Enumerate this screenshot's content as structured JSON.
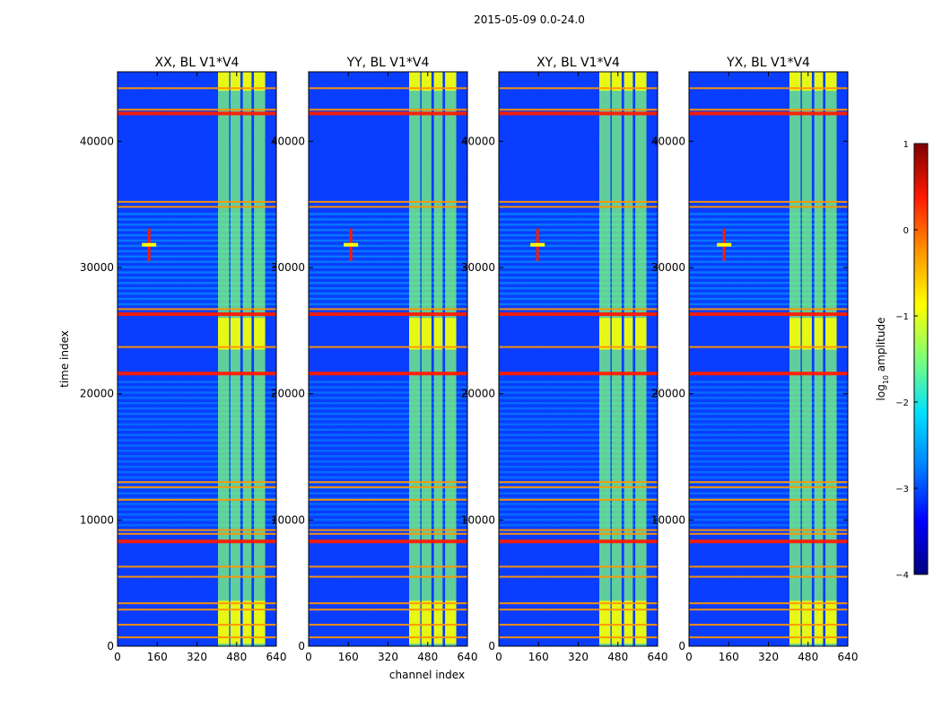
{
  "figure_title": "2015-05-09 0.0-24.0",
  "colormap_colors": {
    "c0": "#00007f",
    "c1": "#0000ff",
    "c2": "#0080ff",
    "c3": "#00e0ff",
    "c4": "#7dff7a",
    "c5": "#ffff00",
    "c6": "#ff9400",
    "c7": "#ff1a00",
    "c8": "#7f0000"
  },
  "chart_data": {
    "type": "heatmap",
    "title": "2015-05-09 0.0-24.0",
    "xlabel": "channel index",
    "ylabel": "time index",
    "xlim": [
      0,
      640
    ],
    "ylim": [
      0,
      45500
    ],
    "xticks": [
      0,
      160,
      320,
      480,
      640
    ],
    "yticks": [
      0,
      10000,
      20000,
      30000,
      40000
    ],
    "panels": [
      {
        "title": "XX, BL V1*V4",
        "polarization": "XX",
        "baseline": "V1*V4"
      },
      {
        "title": "YY, BL V1*V4",
        "polarization": "YY",
        "baseline": "V1*V4"
      },
      {
        "title": "XY, BL V1*V4",
        "polarization": "XY",
        "baseline": "V1*V4"
      },
      {
        "title": "YX, BL V1*V4",
        "polarization": "YX",
        "baseline": "V1*V4"
      }
    ],
    "rfi_channel_bands": [
      [
        405,
        450
      ],
      [
        455,
        495
      ],
      [
        505,
        540
      ],
      [
        550,
        595
      ]
    ],
    "bright_time_rows": [
      700,
      1700,
      2900,
      3400,
      5500,
      6300,
      8300,
      8900,
      9200,
      11600,
      12600,
      13000,
      21600,
      23700,
      26300,
      26700,
      34800,
      35200,
      42200,
      42500,
      44200
    ],
    "bright_spot": {
      "channel": 185,
      "time_index": 31800
    },
    "colorbar": {
      "label": "log10 amplitude",
      "label_text": "log",
      "label_sub": "10",
      "label_rest": " amplitude",
      "range": [
        -4,
        1
      ],
      "ticks": [
        -4,
        -3,
        -2,
        -1,
        0,
        1
      ],
      "tick_labels": [
        "−4",
        "−3",
        "−2",
        "−1",
        "0",
        "1"
      ]
    }
  }
}
